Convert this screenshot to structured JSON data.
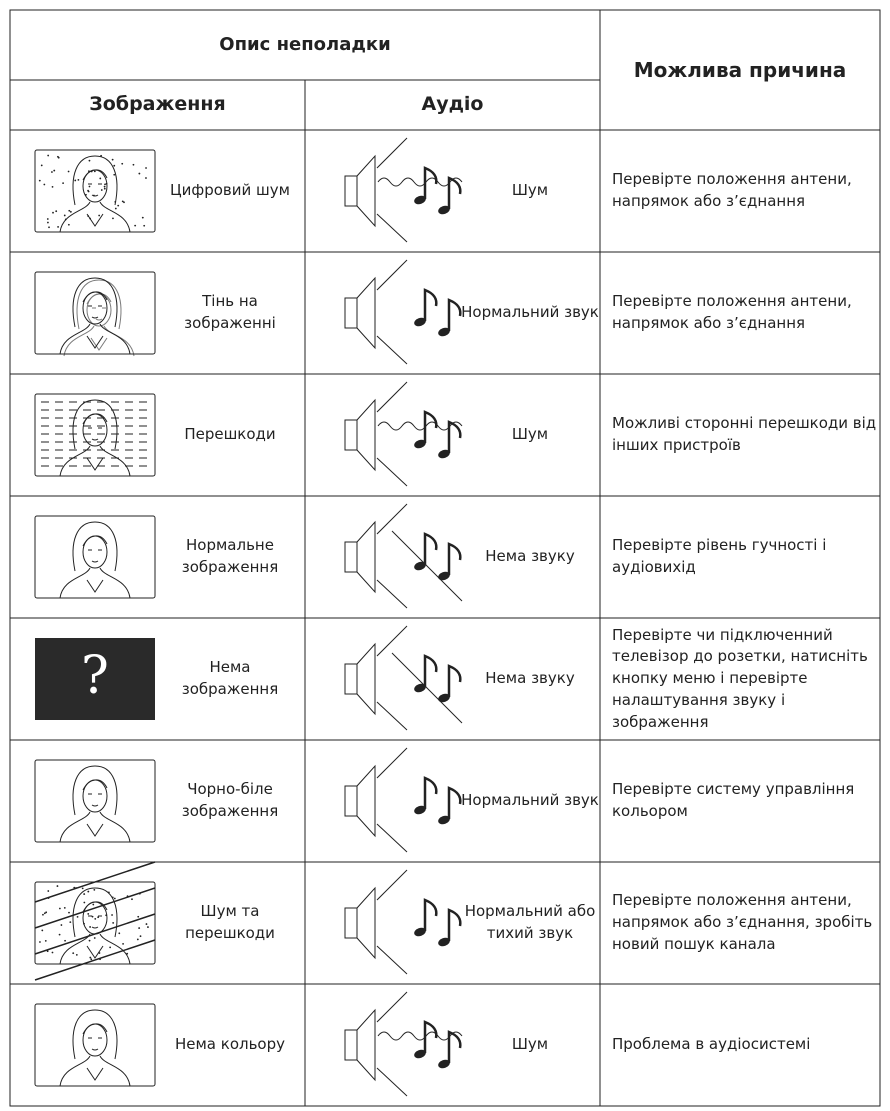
{
  "header": {
    "problem": "Опис неполадки",
    "image": "Зображення",
    "audio": "Аудіо",
    "cause": "Можлива причина"
  },
  "rows": [
    {
      "image": "Цифровий шум",
      "audio": "Шум",
      "cause": "Перевірте положення антени, напрямок або з’єднання"
    },
    {
      "image": "Тінь на зображенні",
      "audio": "Нормальний звук",
      "cause": "Перевірте положення антени, напрямок або з’єднання"
    },
    {
      "image": "Перешкоди",
      "audio": "Шум",
      "cause": "Можливі сторонні перешкоди від інших пристроїв"
    },
    {
      "image": "Нормальне зображення",
      "audio": "Нема звуку",
      "cause": "Перевірте рівень гучності і аудіовихід"
    },
    {
      "image": "Нема зображення",
      "image_symbol": "?",
      "audio": "Нема звуку",
      "cause": "Перевірте чи підключенний телевізор до розетки, натисніть кнопку меню і перевірте налаштування звуку і зображення"
    },
    {
      "image": "Чорно-біле зображення",
      "audio": "Нормальний звук",
      "cause": "Перевірте систему управління кольором"
    },
    {
      "image": "Шум та перешкоди",
      "audio": "Нормальний або тихий звук",
      "cause": "Перевірте положення антени, напрямок або з’єднання, зробіть новий пошук канала"
    },
    {
      "image": "Нема кольору",
      "audio": "Шум",
      "cause": "Проблема в аудіосистемі"
    }
  ]
}
